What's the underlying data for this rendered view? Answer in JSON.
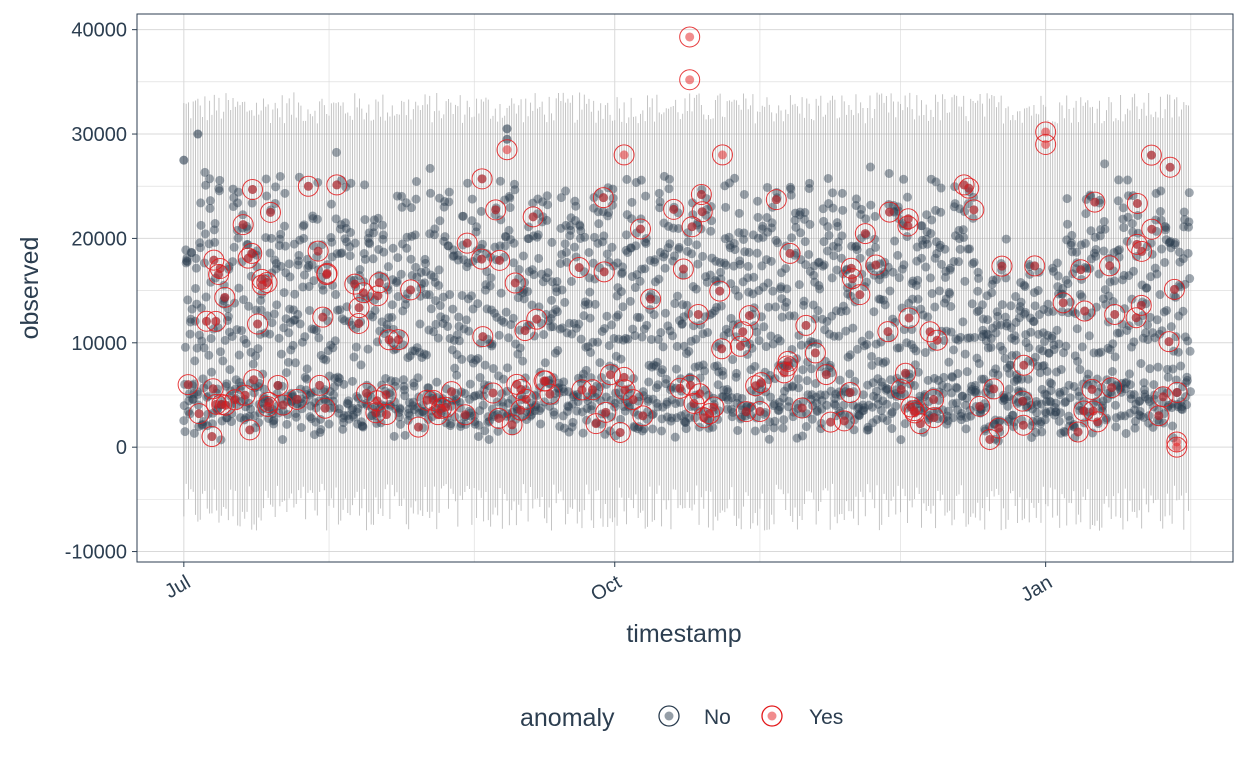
{
  "chart_data": {
    "type": "scatter",
    "title": "",
    "xlabel": "timestamp",
    "ylabel": "observed",
    "x_ticks": [
      "Jul",
      "Oct",
      "Jan"
    ],
    "y_ticks": [
      -10000,
      0,
      10000,
      20000,
      30000,
      40000
    ],
    "xlim": [
      "2016-06-21",
      "2017-02-10"
    ],
    "ylim": [
      -11000,
      41500
    ],
    "grid": true,
    "legend": {
      "title": "anomaly",
      "position": "bottom",
      "entries": [
        {
          "label": "No",
          "color": "#2c3e50"
        },
        {
          "label": "Yes",
          "color": "#e31a1c"
        }
      ]
    },
    "colors": {
      "normal": "#2c3e50",
      "anomaly": "#e31a1c",
      "band": "#a8a8a8",
      "panel_border": "#2c3e50",
      "grid": "#d9d9d9"
    },
    "band": {
      "description_free": true,
      "upper_range": [
        31000,
        34000
      ],
      "lower_range": [
        -8000,
        -3500
      ]
    },
    "series": [
      {
        "name": "No",
        "regimes": [
          {
            "start": "2016-07-01",
            "end": "2016-09-05",
            "base": [
              2000,
              6000
            ],
            "peak": [
              18000,
              27000
            ]
          },
          {
            "start": "2016-09-05",
            "end": "2016-12-18",
            "base": [
              2000,
              7000
            ],
            "peak": [
              20000,
              26000
            ]
          },
          {
            "start": "2016-12-18",
            "end": "2017-01-05",
            "base": [
              1500,
              5500
            ],
            "peak": [
              12000,
              20000
            ]
          },
          {
            "start": "2017-01-05",
            "end": "2017-02-01",
            "base": [
              2000,
              6500
            ],
            "peak": [
              20000,
              27000
            ]
          }
        ],
        "notable_points": [
          {
            "x": "2016-07-01",
            "y": 27500
          },
          {
            "x": "2016-07-04",
            "y": 30000
          },
          {
            "x": "2016-09-08",
            "y": 30500
          },
          {
            "x": "2016-09-08",
            "y": 29500
          }
        ]
      },
      {
        "name": "Yes",
        "notable_points": [
          {
            "x": "2016-10-17",
            "y": 39300
          },
          {
            "x": "2016-10-17",
            "y": 35200
          },
          {
            "x": "2017-01-01",
            "y": 30200
          },
          {
            "x": "2017-01-01",
            "y": 29000
          },
          {
            "x": "2016-09-08",
            "y": 28500
          },
          {
            "x": "2016-10-03",
            "y": 28000
          },
          {
            "x": "2016-10-24",
            "y": 28000
          },
          {
            "x": "2017-01-29",
            "y": 500
          },
          {
            "x": "2017-01-29",
            "y": 0
          }
        ]
      }
    ]
  }
}
